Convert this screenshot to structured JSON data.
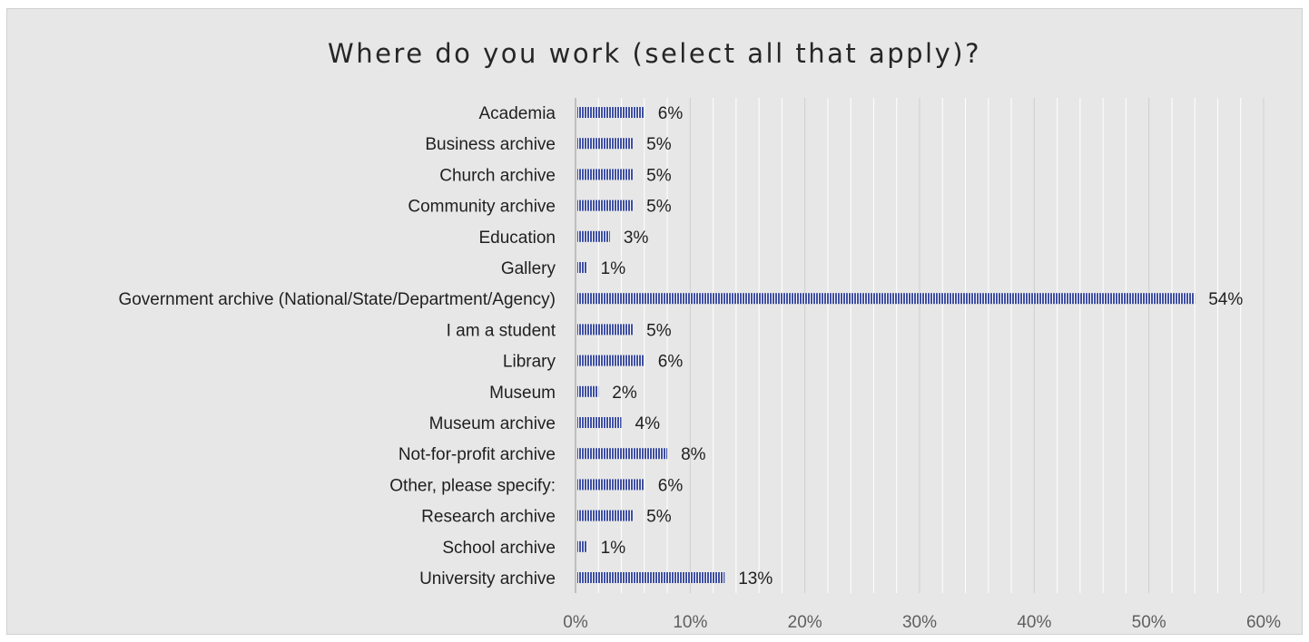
{
  "chart_data": {
    "type": "bar",
    "orientation": "horizontal",
    "title": "Where do you work (select all that apply)?",
    "xlabel": "",
    "ylabel": "",
    "categories": [
      "Academia",
      "Business archive",
      "Church archive",
      "Community archive",
      "Education",
      "Gallery",
      "Government archive (National/State/Department/Agency)",
      "I am a student",
      "Library",
      "Museum",
      "Museum archive",
      "Not-for-profit archive",
      "Other, please specify:",
      "Research archive",
      "School archive",
      "University archive"
    ],
    "values": [
      6,
      5,
      5,
      5,
      3,
      1,
      54,
      5,
      6,
      2,
      4,
      8,
      6,
      5,
      1,
      13
    ],
    "data_labels": [
      "6%",
      "5%",
      "5%",
      "5%",
      "3%",
      "1%",
      "54%",
      "5%",
      "6%",
      "2%",
      "4%",
      "8%",
      "6%",
      "5%",
      "1%",
      "13%"
    ],
    "xlim": [
      0,
      60
    ],
    "x_ticks": [
      0,
      10,
      20,
      30,
      40,
      50,
      60
    ],
    "x_tick_labels": [
      "0%",
      "10%",
      "20%",
      "30%",
      "40%",
      "50%",
      "60%"
    ],
    "grid": true,
    "legend": "none",
    "bar_color": "#3f4fa0",
    "bar_pattern": "vertical-stripes",
    "background_color": "#e7e7e7"
  }
}
